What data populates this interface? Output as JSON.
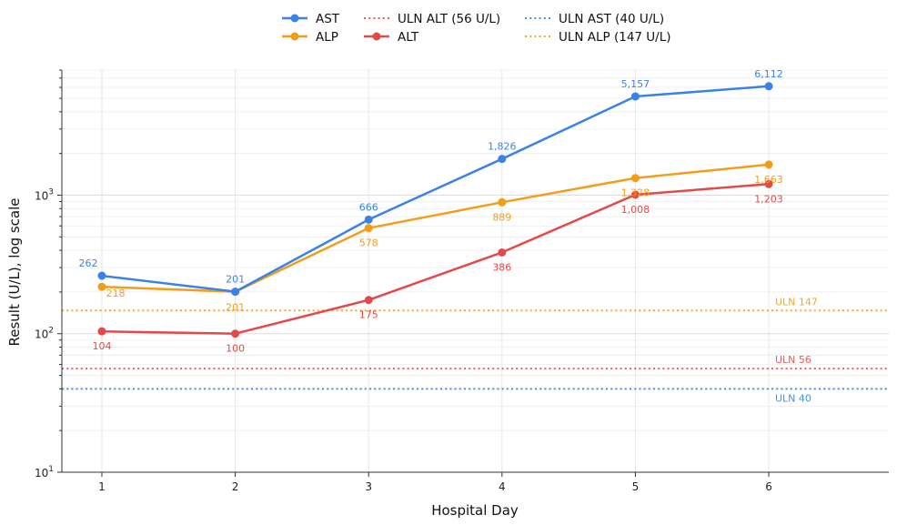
{
  "chart_data": {
    "type": "line",
    "xlabel": "Hospital Day",
    "ylabel": "Result (U/L), log scale",
    "y_scale": "log",
    "ylim": [
      10,
      8000
    ],
    "xlim": [
      0.7,
      6.9
    ],
    "x": [
      1,
      2,
      3,
      4,
      5,
      6
    ],
    "x_tick_labels": [
      "1",
      "2",
      "3",
      "4",
      "5",
      "6"
    ],
    "y_tick_labels": [
      {
        "value": 10,
        "base": "10",
        "exp": "1"
      },
      {
        "value": 100,
        "base": "10",
        "exp": "2"
      },
      {
        "value": 1000,
        "base": "10",
        "exp": "3"
      }
    ],
    "grid": true,
    "legend_position": "top-center",
    "series": [
      {
        "name": "AST",
        "color": "#3b82e6",
        "values": [
          262,
          201,
          666,
          1826,
          5157,
          6112
        ],
        "labels": [
          "262",
          "201",
          "666",
          "1,826",
          "5,157",
          "6,112"
        ]
      },
      {
        "name": "ALT",
        "color": "#e54848",
        "values": [
          104,
          100,
          175,
          386,
          1008,
          1203
        ],
        "labels": [
          "104",
          "100",
          "175",
          "386",
          "1,008",
          "1,203"
        ]
      },
      {
        "name": "ALP",
        "color": "#f29d1a",
        "values": [
          218,
          201,
          578,
          889,
          1328,
          1663
        ],
        "labels": [
          "218",
          "201",
          "578",
          "889",
          "1,328",
          "1,663"
        ]
      }
    ],
    "reference_lines": [
      {
        "name": "ULN AST (40 U/L)",
        "value": 40,
        "label": "ULN 40",
        "color": "#4a90e2"
      },
      {
        "name": "ULN ALT (56 U/L)",
        "value": 56,
        "label": "ULN 56",
        "color": "#ee5a5a"
      },
      {
        "name": "ULN ALP (147 U/L)",
        "value": 147,
        "label": "ULN 147",
        "color": "#f4a62a"
      }
    ],
    "legend": [
      {
        "name": "AST",
        "color": "#3b82e6",
        "style": "line-marker"
      },
      {
        "name": "ALP",
        "color": "#f29d1a",
        "style": "line-marker"
      },
      {
        "name": "ULN ALT (56 U/L)",
        "color": "#ee5a5a",
        "style": "dotted"
      },
      {
        "name": "ALT",
        "color": "#e54848",
        "style": "line-marker"
      },
      {
        "name": "ULN AST (40 U/L)",
        "color": "#4a90e2",
        "style": "dotted"
      },
      {
        "name": "ULN ALP (147 U/L)",
        "color": "#f4a62a",
        "style": "dotted"
      }
    ]
  }
}
